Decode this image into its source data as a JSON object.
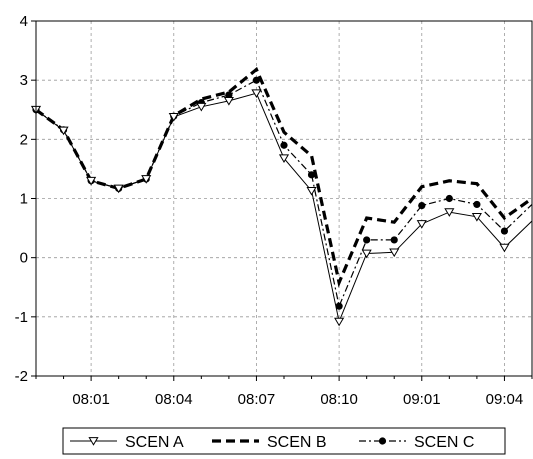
{
  "chart_data": {
    "type": "line",
    "title": "",
    "xlabel": "",
    "ylabel": "",
    "ylim": [
      -2,
      4
    ],
    "yticks": [
      -2,
      -1,
      0,
      1,
      2,
      3,
      4
    ],
    "x_tick_labels": [
      "08:01",
      "08:04",
      "08:07",
      "08:10",
      "09:01",
      "09:04"
    ],
    "x_tick_positions": [
      2,
      5,
      8,
      11,
      14,
      17
    ],
    "x_range": [
      0,
      18
    ],
    "grid": true,
    "legend_placement": "bottom-center",
    "x": [
      0,
      1,
      2,
      3,
      4,
      5,
      6,
      7,
      8,
      9,
      10,
      11,
      12,
      13,
      14,
      15,
      16,
      17,
      18
    ],
    "series": [
      {
        "name": "SCEN A",
        "style": "solid-triangle",
        "color": "#000000",
        "values": [
          2.5,
          2.15,
          1.3,
          1.17,
          1.33,
          2.38,
          2.55,
          2.65,
          2.78,
          1.68,
          1.13,
          -1.08,
          0.07,
          0.09,
          0.57,
          0.77,
          0.69,
          0.17,
          0.62
        ]
      },
      {
        "name": "SCEN B",
        "style": "bold-dashed",
        "color": "#000000",
        "values": [
          2.5,
          2.16,
          1.3,
          1.17,
          1.33,
          2.4,
          2.68,
          2.8,
          3.18,
          2.12,
          1.72,
          -0.42,
          0.67,
          0.6,
          1.2,
          1.3,
          1.25,
          0.67,
          1.0
        ]
      },
      {
        "name": "SCEN C",
        "style": "dashdot-dot",
        "color": "#000000",
        "values": [
          2.5,
          2.16,
          1.3,
          1.17,
          1.33,
          2.39,
          2.62,
          2.75,
          3.0,
          1.9,
          1.4,
          -0.82,
          0.3,
          0.3,
          0.88,
          1.0,
          0.9,
          0.45,
          0.9
        ]
      }
    ]
  }
}
